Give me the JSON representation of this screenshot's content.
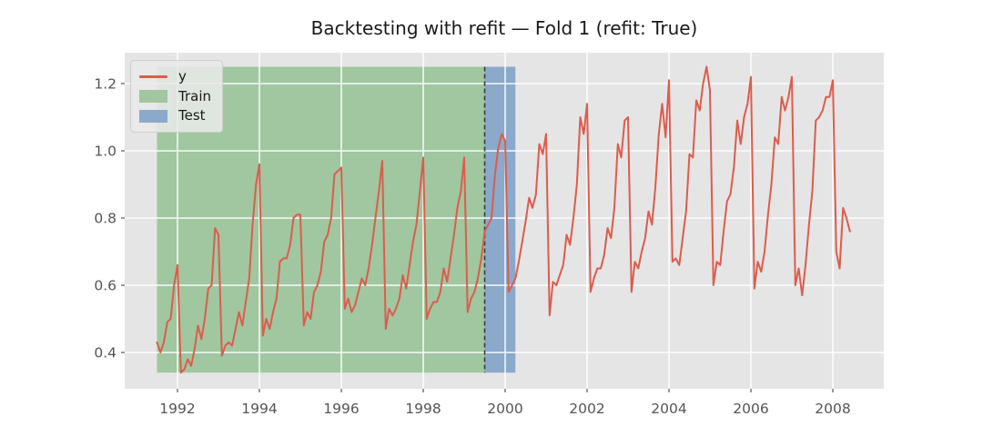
{
  "chart_data": {
    "type": "line",
    "title": "Backtesting with refit — Fold 1 (refit: True)",
    "fold_label": "Fold 1",
    "refit_label": "refit: True",
    "grid": true,
    "fig_bg": "#ffffff",
    "plot_bg": "#e5e5e5",
    "grid_color": "#ffffff",
    "tick_color": "#555555",
    "title_color": "#1a1a1a",
    "x_axis": {
      "tick_values": [
        1992,
        1994,
        1996,
        1998,
        2000,
        2002,
        2004,
        2006,
        2008
      ],
      "tick_labels": [
        "1992",
        "1994",
        "1996",
        "1998",
        "2000",
        "2002",
        "2004",
        "2006",
        "2008"
      ],
      "lim": [
        1990.711,
        2009.244
      ]
    },
    "y_axis": {
      "tick_values": [
        0.4,
        0.6,
        0.8,
        1.0,
        1.2
      ],
      "tick_labels": [
        "0.4",
        "0.6",
        "0.8",
        "1.0",
        "1.2"
      ],
      "lim": [
        0.292,
        1.292
      ]
    },
    "series": [
      {
        "name": "y",
        "color": "#dd5c4d",
        "start": "1991-07",
        "end": "2008-06",
        "frequency": "monthly",
        "x_start_decimal": 1991.5,
        "values": [
          0.43,
          0.4,
          0.43,
          0.49,
          0.5,
          0.6,
          0.66,
          0.34,
          0.35,
          0.38,
          0.36,
          0.41,
          0.48,
          0.44,
          0.5,
          0.59,
          0.6,
          0.77,
          0.75,
          0.39,
          0.42,
          0.43,
          0.42,
          0.47,
          0.52,
          0.48,
          0.55,
          0.62,
          0.78,
          0.9,
          0.96,
          0.45,
          0.5,
          0.47,
          0.52,
          0.56,
          0.67,
          0.68,
          0.68,
          0.72,
          0.8,
          0.81,
          0.81,
          0.48,
          0.52,
          0.5,
          0.58,
          0.6,
          0.64,
          0.73,
          0.75,
          0.8,
          0.93,
          0.94,
          0.95,
          0.53,
          0.56,
          0.52,
          0.54,
          0.58,
          0.62,
          0.6,
          0.65,
          0.72,
          0.8,
          0.88,
          0.97,
          0.47,
          0.53,
          0.51,
          0.53,
          0.56,
          0.63,
          0.59,
          0.66,
          0.73,
          0.78,
          0.88,
          0.98,
          0.5,
          0.53,
          0.55,
          0.55,
          0.58,
          0.65,
          0.61,
          0.68,
          0.75,
          0.83,
          0.88,
          0.98,
          0.52,
          0.56,
          0.58,
          0.62,
          0.68,
          0.76,
          0.78,
          0.8,
          0.93,
          1.01,
          1.05,
          1.03,
          0.58,
          0.6,
          0.62,
          0.67,
          0.73,
          0.79,
          0.86,
          0.83,
          0.87,
          1.02,
          0.99,
          1.05,
          0.51,
          0.61,
          0.6,
          0.63,
          0.66,
          0.75,
          0.72,
          0.8,
          0.9,
          1.1,
          1.05,
          1.14,
          0.58,
          0.62,
          0.65,
          0.65,
          0.69,
          0.77,
          0.74,
          0.83,
          1.02,
          0.98,
          1.09,
          1.1,
          0.58,
          0.67,
          0.65,
          0.7,
          0.74,
          0.82,
          0.78,
          0.89,
          1.05,
          1.14,
          1.04,
          1.21,
          0.67,
          0.68,
          0.66,
          0.74,
          0.82,
          0.99,
          0.98,
          1.15,
          1.12,
          1.2,
          1.25,
          1.18,
          0.6,
          0.67,
          0.66,
          0.76,
          0.85,
          0.87,
          0.95,
          1.09,
          1.02,
          1.1,
          1.14,
          1.22,
          0.59,
          0.67,
          0.64,
          0.7,
          0.81,
          0.9,
          1.04,
          1.02,
          1.16,
          1.12,
          1.16,
          1.22,
          0.6,
          0.65,
          0.57,
          0.66,
          0.78,
          0.88,
          1.09,
          1.1,
          1.12,
          1.16,
          1.16,
          1.21,
          0.7,
          0.65,
          0.83,
          0.8,
          0.76
        ]
      }
    ],
    "regions": [
      {
        "label": "Train",
        "color": "#a0c7a0",
        "x_start_decimal": 1991.5,
        "x_end_decimal": 1999.5,
        "period": [
          "1991-07",
          "1999-06"
        ]
      },
      {
        "label": "Test",
        "color": "#8ba9cb",
        "x_start_decimal": 1999.5,
        "x_end_decimal": 2000.25,
        "period": [
          "1999-07",
          "2000-04"
        ]
      }
    ],
    "split_line": {
      "x_decimal": 1999.5,
      "color": "#3c3c3c",
      "style": "dashed"
    },
    "legend": [
      {
        "label": "y",
        "swatch": "line",
        "color": "#dd5c4d"
      },
      {
        "label": "Train",
        "swatch": "patch",
        "color": "#a0c7a0"
      },
      {
        "label": "Test",
        "swatch": "patch",
        "color": "#8ba9cb"
      }
    ],
    "legend_position": "upper left"
  }
}
